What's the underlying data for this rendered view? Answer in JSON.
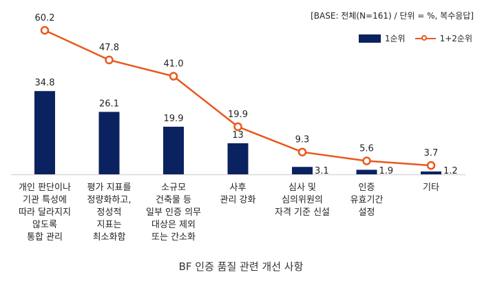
{
  "chart_data": {
    "type": "bar",
    "title": "BF 인증 품질 관련 개선 사항",
    "note": "[BASE: 전체(N=161) / 단위 = %, 복수응답]",
    "categories": [
      "개인 판단이나\n기관 특성에\n따라 달라지지\n않도록\n통합 관리",
      "평가 지표를\n정량화하고,\n정성적\n지표는\n최소화함",
      "소규모\n건축물 등\n일부 인증 의무\n대상은 제외\n또는 간소화",
      "사후\n관리 강화",
      "심사 및\n심의위원의\n자격 기준 신설",
      "인증\n유효기간\n설정",
      "기타"
    ],
    "series": [
      {
        "name": "1순위",
        "type": "bar",
        "color": "#0b2260",
        "values": [
          34.8,
          26.1,
          19.9,
          13,
          3.1,
          1.9,
          1.2
        ],
        "labels": [
          "34.8",
          "26.1",
          "19.9",
          "13",
          "3.1",
          "1.9",
          "1.2"
        ]
      },
      {
        "name": "1+2순위",
        "type": "line",
        "color": "#e8581c",
        "values": [
          60.2,
          47.8,
          41.0,
          19.9,
          9.3,
          5.6,
          3.7
        ],
        "labels": [
          "60.2",
          "47.8",
          "41.0",
          "19.9",
          "9.3",
          "5.6",
          "3.7"
        ]
      }
    ],
    "xlabel": "",
    "ylabel": "",
    "ylim": [
      0,
      60.2
    ],
    "grid": false,
    "legend_position": "top-right"
  },
  "legend": {
    "bar_label": "1순위",
    "line_label": "1+2순위"
  }
}
